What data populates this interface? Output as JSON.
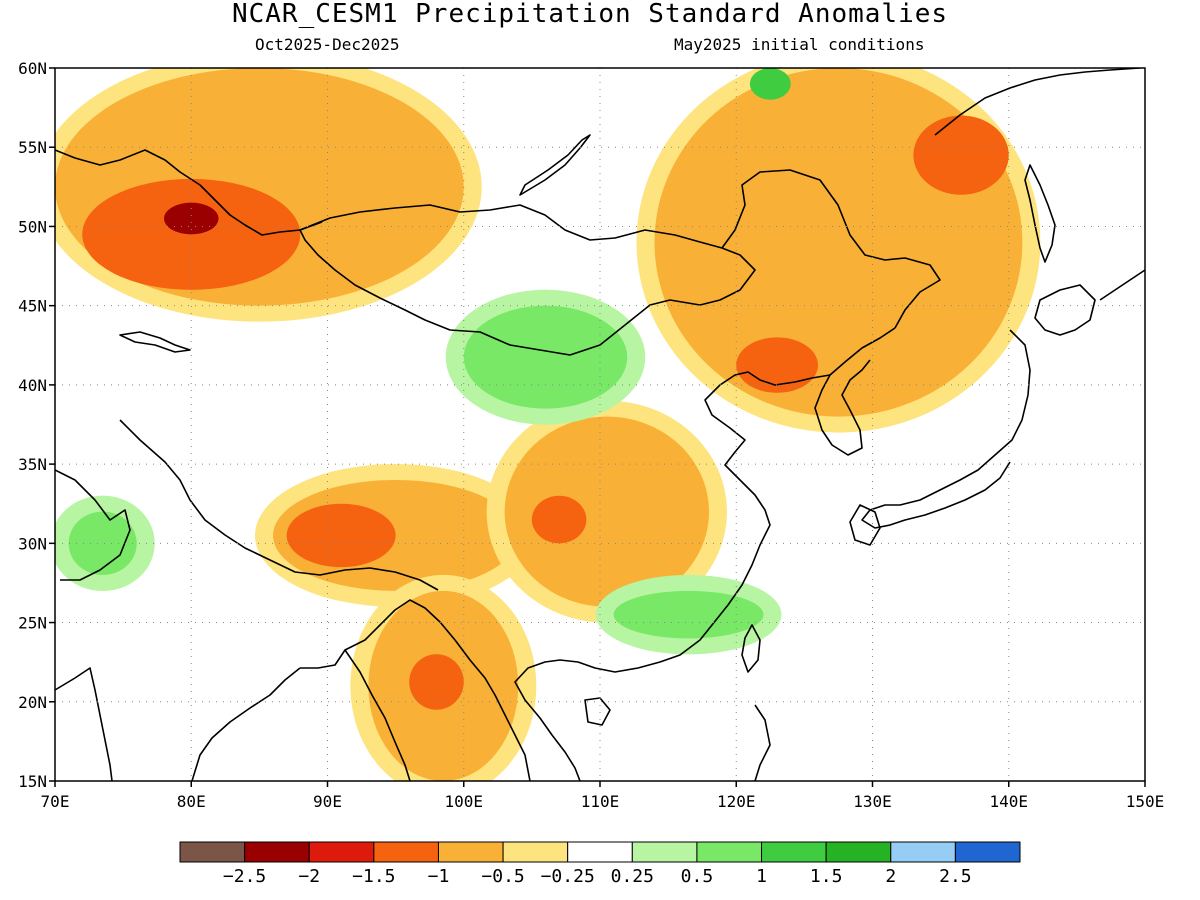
{
  "title": "NCAR_CESM1 Precipitation Standard Anomalies",
  "subtitle_left": "Oct2025-Dec2025",
  "subtitle_right": "May2025 initial conditions",
  "axes": {
    "lon_labels": [
      "70E",
      "80E",
      "90E",
      "100E",
      "110E",
      "120E",
      "130E",
      "140E",
      "150E"
    ],
    "lat_labels": [
      "60N",
      "55N",
      "50N",
      "45N",
      "40N",
      "35N",
      "30N",
      "25N",
      "20N",
      "15N"
    ],
    "lon_range": [
      70,
      150
    ],
    "lat_range": [
      15,
      60
    ],
    "grid": "dotted"
  },
  "colorbar": {
    "colors": [
      "#7a5548",
      "#9a0000",
      "#dd1a0c",
      "#f56210",
      "#f9b037",
      "#fde47e",
      "#ffffff",
      "#b7f5a3",
      "#78e866",
      "#3fcc41",
      "#26b225",
      "#95cdf5",
      "#1f66d1"
    ],
    "labels": [
      "−2.5",
      "−2",
      "−1.5",
      "−1",
      "−0.5",
      "−0.25",
      "0.25",
      "0.5",
      "1",
      "1.5",
      "2",
      "2.5"
    ]
  },
  "anomaly_regions": [
    {
      "level": "-1",
      "lon": [
        70,
        100
      ],
      "lat": [
        45,
        60
      ]
    },
    {
      "level": "-1.5",
      "lon": [
        72,
        88
      ],
      "lat": [
        46,
        53
      ]
    },
    {
      "level": "-2",
      "lon": [
        78,
        82
      ],
      "lat": [
        49.5,
        51.5
      ]
    },
    {
      "level": "-1",
      "lon": [
        86,
        104
      ],
      "lat": [
        27,
        34
      ]
    },
    {
      "level": "-1.5",
      "lon": [
        87,
        95
      ],
      "lat": [
        28.5,
        32.5
      ]
    },
    {
      "level": "-1",
      "lon": [
        103,
        118
      ],
      "lat": [
        26,
        38
      ]
    },
    {
      "level": "-1.5",
      "lon": [
        105,
        109
      ],
      "lat": [
        30,
        33
      ]
    },
    {
      "level": "-1",
      "lon": [
        114,
        141
      ],
      "lat": [
        38,
        60
      ]
    },
    {
      "level": "-1.5",
      "lon": [
        133,
        140
      ],
      "lat": [
        52,
        57
      ]
    },
    {
      "level": "-1.5",
      "lon": [
        120,
        126
      ],
      "lat": [
        39.5,
        43
      ]
    },
    {
      "level": "-1",
      "lon": [
        93,
        104
      ],
      "lat": [
        15,
        27
      ]
    },
    {
      "level": "-1.5",
      "lon": [
        96,
        100
      ],
      "lat": [
        19.5,
        23
      ]
    },
    {
      "level": "0.5",
      "lon": [
        100,
        112
      ],
      "lat": [
        38.5,
        45
      ]
    },
    {
      "level": "0.5",
      "lon": [
        111,
        122
      ],
      "lat": [
        24,
        27
      ]
    },
    {
      "level": "0.5",
      "lon": [
        71,
        76
      ],
      "lat": [
        28,
        32
      ]
    },
    {
      "level": "1.5",
      "lon": [
        121,
        124
      ],
      "lat": [
        58,
        60
      ]
    }
  ]
}
